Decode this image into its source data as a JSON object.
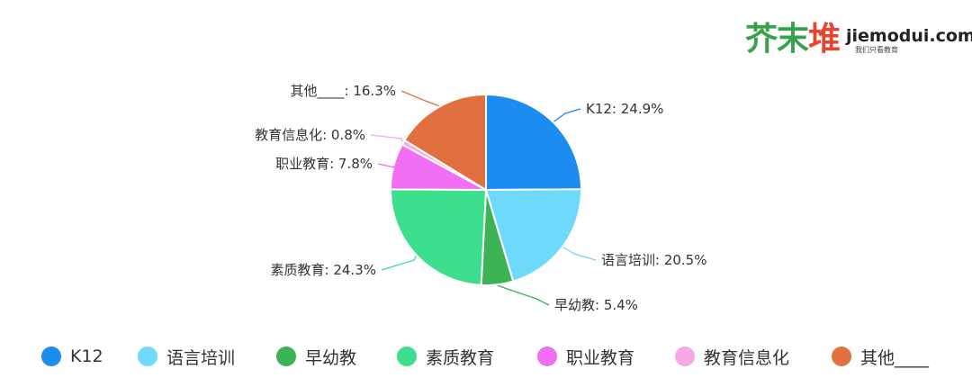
{
  "logo": {
    "cn_part1": "芥末",
    "cn_part2": "堆",
    "en": "jiemodui.com",
    "sub": "我们只看教育"
  },
  "colors": {
    "accent_green": "#3aa049",
    "accent_red": "#e8432b"
  },
  "chart_data": {
    "type": "pie",
    "slices": [
      {
        "name": "K12",
        "value": 24.9,
        "label": "K12: 24.9%",
        "color": "#1c8cf0"
      },
      {
        "name": "语言培训",
        "value": 20.5,
        "label": "语言培训: 20.5%",
        "color": "#6dd9fb"
      },
      {
        "name": "早幼教",
        "value": 5.4,
        "label": "早幼教: 5.4%",
        "color": "#3cb354"
      },
      {
        "name": "素质教育",
        "value": 24.3,
        "label": "素质教育: 24.3%",
        "color": "#3ddf8e"
      },
      {
        "name": "职业教育",
        "value": 7.8,
        "label": "职业教育: 7.8%",
        "color": "#f26ff5"
      },
      {
        "name": "教育信息化",
        "value": 0.8,
        "label": "教育信息化: 0.8%",
        "color": "#f6a8e8"
      },
      {
        "name": "其他____",
        "value": 16.3,
        "label": "其他____: 16.3%",
        "color": "#e17040"
      }
    ],
    "legend_position": "bottom"
  }
}
